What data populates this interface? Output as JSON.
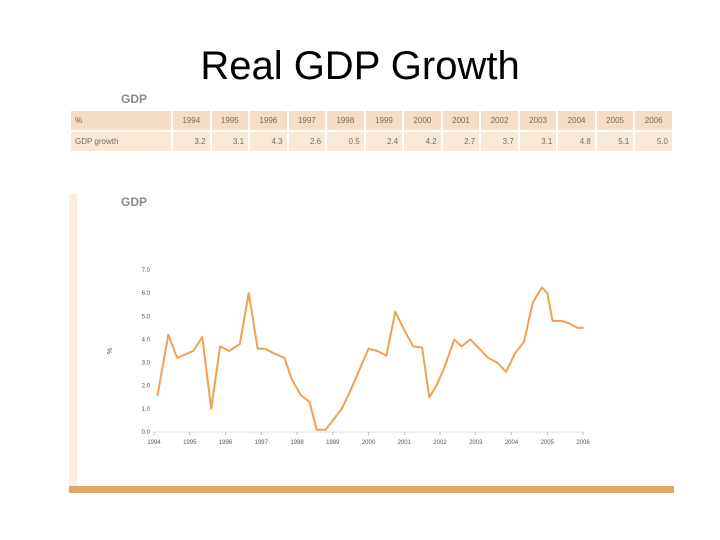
{
  "slide": {
    "title": "Real GDP Growth"
  },
  "table": {
    "section_label": "GDP",
    "header_label": "%",
    "years": [
      "1994",
      "1995",
      "1996",
      "1997",
      "1998",
      "1999",
      "2000",
      "2001",
      "2002",
      "2003",
      "2004",
      "2005",
      "2006"
    ],
    "row_label": "GDP growth",
    "values": [
      "3.2",
      "3.1",
      "4.3",
      "2.6",
      "0.5",
      "2.4",
      "4.2",
      "2.7",
      "3.7",
      "3.1",
      "4.8",
      "5.1",
      "5.0"
    ]
  },
  "chart_data": {
    "type": "line",
    "section_label": "GDP",
    "ylabel": "%",
    "ylim": [
      0,
      7
    ],
    "yticks": [
      "0.0",
      "1.0",
      "2.0",
      "3.0",
      "4.0",
      "5.0",
      "6.0",
      "7.0"
    ],
    "xlim": [
      1994,
      2006
    ],
    "xticks": [
      "1994",
      "1995",
      "1996",
      "1997",
      "1998",
      "1999",
      "2000",
      "2001",
      "2002",
      "2003",
      "2004",
      "2005",
      "2006"
    ],
    "grid": false,
    "series": [
      {
        "color": "#f0a050",
        "x": [
          1994.1,
          1994.4,
          1994.65,
          1995.1,
          1995.35,
          1995.6,
          1995.85,
          1996.1,
          1996.4,
          1996.65,
          1996.9,
          1997.1,
          1997.35,
          1997.65,
          1997.85,
          1998.1,
          1998.35,
          1998.55,
          1998.8,
          1999.0,
          1999.25,
          1999.5,
          1999.75,
          2000.0,
          2000.25,
          2000.5,
          2000.75,
          2001.0,
          2001.25,
          2001.5,
          2001.7,
          2001.9,
          2002.1,
          2002.4,
          2002.6,
          2002.85,
          2003.1,
          2003.35,
          2003.6,
          2003.85,
          2004.1,
          2004.35,
          2004.6,
          2004.85,
          2005.0,
          2005.15,
          2005.4,
          2005.6,
          2005.85,
          2006.0
        ],
        "values": [
          1.6,
          4.2,
          3.2,
          3.5,
          4.1,
          1.0,
          3.7,
          3.5,
          3.8,
          6.0,
          3.6,
          3.6,
          3.4,
          3.2,
          2.3,
          1.6,
          1.3,
          0.1,
          0.1,
          0.5,
          1.0,
          1.8,
          2.7,
          3.6,
          3.5,
          3.3,
          5.2,
          4.4,
          3.7,
          3.65,
          1.5,
          2.0,
          2.7,
          4.0,
          3.7,
          4.0,
          3.6,
          3.2,
          3.0,
          2.6,
          3.4,
          3.9,
          5.6,
          6.25,
          6.0,
          4.8,
          4.8,
          4.7,
          4.5,
          4.5
        ]
      }
    ]
  }
}
